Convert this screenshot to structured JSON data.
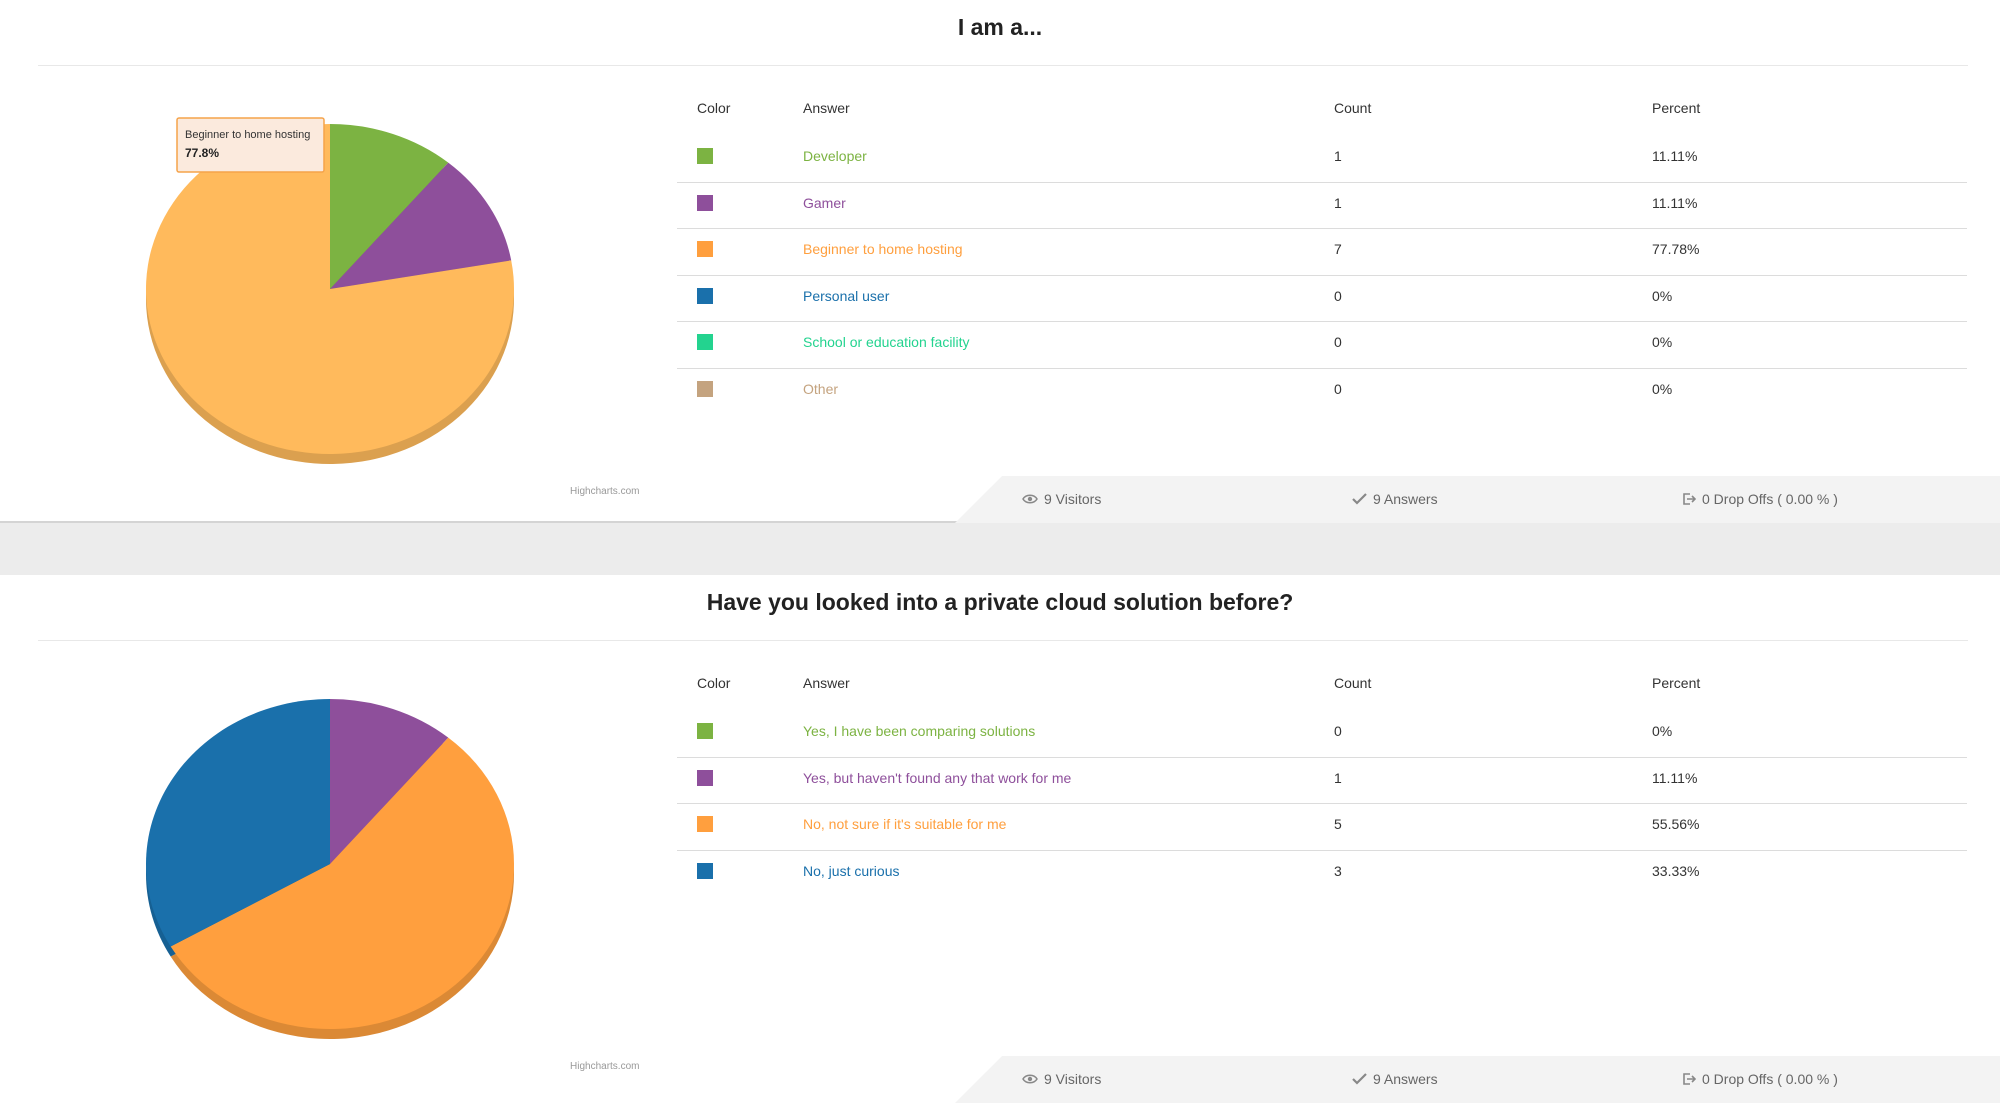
{
  "questions": [
    {
      "title": "I am a...",
      "columns": {
        "color": "Color",
        "answer": "Answer",
        "count": "Count",
        "percent": "Percent"
      },
      "answers": [
        {
          "label": "Developer",
          "count": "1",
          "percent": "11.11%",
          "color": "#7cb342"
        },
        {
          "label": "Gamer",
          "count": "1",
          "percent": "11.11%",
          "color": "#8e4f9b"
        },
        {
          "label": "Beginner to home hosting",
          "count": "7",
          "percent": "77.78%",
          "color": "#ff9f3e"
        },
        {
          "label": "Personal user",
          "count": "0",
          "percent": "0%",
          "color": "#1a70ab"
        },
        {
          "label": "School or education facility",
          "count": "0",
          "percent": "0%",
          "color": "#23d38f"
        },
        {
          "label": "Other",
          "count": "0",
          "percent": "0%",
          "color": "#c4a37f"
        }
      ],
      "tooltip": {
        "label": "Beginner to home hosting",
        "value": "77.8%"
      },
      "credit": "Highcharts.com",
      "footer": {
        "visitors": "9 Visitors",
        "answers": "9 Answers",
        "dropoffs": "0 Drop Offs ( 0.00 % )"
      },
      "chart_data": {
        "type": "pie",
        "categories": [
          "Developer",
          "Gamer",
          "Beginner to home hosting",
          "Personal user",
          "School or education facility",
          "Other"
        ],
        "values": [
          1,
          1,
          7,
          0,
          0,
          0
        ],
        "colors": [
          "#7cb342",
          "#8e4f9b",
          "#ffba5c",
          "#1a70ab",
          "#23d38f",
          "#c4a37f"
        ]
      }
    },
    {
      "title": "Have you looked into a private cloud solution before?",
      "columns": {
        "color": "Color",
        "answer": "Answer",
        "count": "Count",
        "percent": "Percent"
      },
      "answers": [
        {
          "label": "Yes, I have been comparing solutions",
          "count": "0",
          "percent": "0%",
          "color": "#7cb342"
        },
        {
          "label": "Yes, but haven't found any that work for me",
          "count": "1",
          "percent": "11.11%",
          "color": "#8e4f9b"
        },
        {
          "label": "No, not sure if it's suitable for me",
          "count": "5",
          "percent": "55.56%",
          "color": "#ff9f3e"
        },
        {
          "label": "No, just curious",
          "count": "3",
          "percent": "33.33%",
          "color": "#1a70ab"
        }
      ],
      "credit": "Highcharts.com",
      "footer": {
        "visitors": "9 Visitors",
        "answers": "9 Answers",
        "dropoffs": "0 Drop Offs ( 0.00 % )"
      },
      "chart_data": {
        "type": "pie",
        "categories": [
          "Yes, I have been comparing solutions",
          "Yes, but haven't found any that work for me",
          "No, not sure if it's suitable for me",
          "No, just curious"
        ],
        "values": [
          0,
          1,
          5,
          3
        ],
        "colors": [
          "#7cb342",
          "#8e4f9b",
          "#ff9f3e",
          "#1a70ab"
        ]
      }
    }
  ],
  "ui_colors": {
    "text_dark": "#333333",
    "muted": "#666666",
    "footer_bg": "#f3f3f3",
    "page_bg": "#ececec"
  }
}
